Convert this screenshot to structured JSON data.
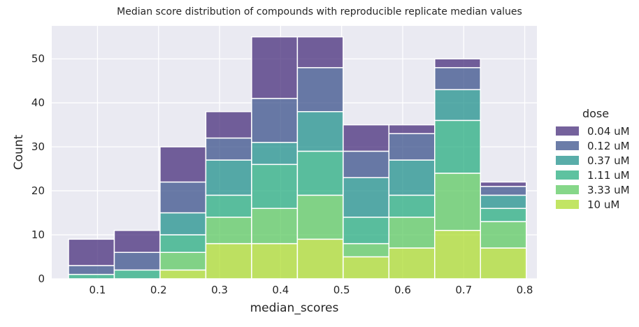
{
  "chart_data": {
    "type": "bar",
    "stacked": true,
    "title": "Median score distribution of compounds with reproducible replicate median values",
    "xlabel": "median_scores",
    "ylabel": "Count",
    "xlim": [
      0.025,
      0.82
    ],
    "ylim": [
      0,
      57.5
    ],
    "xticks": [
      0.1,
      0.2,
      0.3,
      0.4,
      0.5,
      0.6,
      0.7,
      0.8
    ],
    "xtick_labels": [
      "0.1",
      "0.2",
      "0.3",
      "0.4",
      "0.5",
      "0.6",
      "0.7",
      "0.8"
    ],
    "yticks": [
      0,
      10,
      20,
      30,
      40,
      50
    ],
    "ytick_labels": [
      "0",
      "10",
      "20",
      "30",
      "40",
      "50"
    ],
    "grid": true,
    "legend_position": "right",
    "bin_edges": [
      0.0525,
      0.1275,
      0.2025,
      0.2775,
      0.3525,
      0.4275,
      0.5025,
      0.5775,
      0.6525,
      0.7275,
      0.8025
    ],
    "legend_title": "dose",
    "series": [
      {
        "name": "10 uM",
        "color": "#addc30",
        "values": [
          0,
          0,
          2,
          8,
          8,
          9,
          5,
          7,
          11,
          7
        ]
      },
      {
        "name": "3.33 uM",
        "color": "#5ec962",
        "values": [
          0,
          0,
          4,
          6,
          8,
          10,
          3,
          7,
          13,
          6
        ]
      },
      {
        "name": "1.11 uM",
        "color": "#28ae80",
        "values": [
          1,
          2,
          4,
          5,
          10,
          10,
          6,
          5,
          12,
          3
        ]
      },
      {
        "name": "0.37 uM",
        "color": "#21918c",
        "values": [
          0,
          0,
          5,
          8,
          5,
          9,
          9,
          8,
          7,
          3
        ]
      },
      {
        "name": "0.12 uM",
        "color": "#3b528b",
        "values": [
          2,
          4,
          7,
          5,
          10,
          10,
          6,
          6,
          5,
          2
        ]
      },
      {
        "name": "0.04 uM",
        "color": "#472d7b",
        "values": [
          6,
          5,
          8,
          6,
          14,
          7,
          6,
          2,
          2,
          1
        ]
      }
    ],
    "legend_order": [
      "0.04 uM",
      "0.12 uM",
      "0.37 uM",
      "1.11 uM",
      "3.33 uM",
      "10 uM"
    ],
    "plot_background": "#eaeaf2",
    "grid_color": "#ffffff"
  }
}
